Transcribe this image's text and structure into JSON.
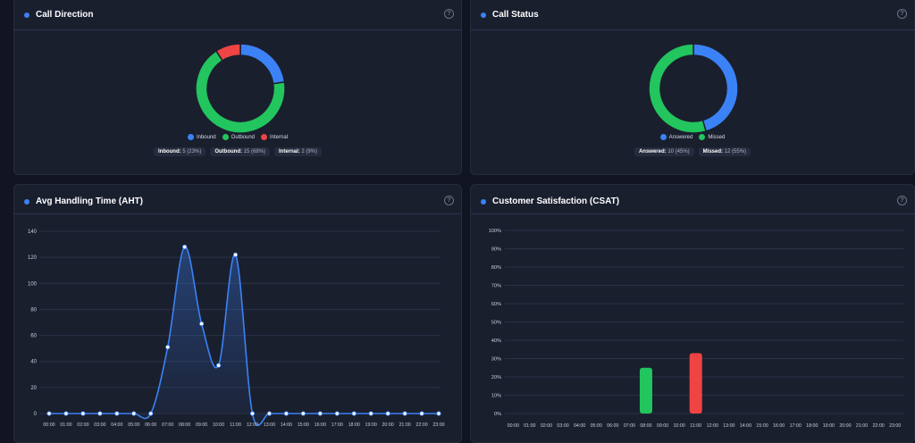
{
  "call_direction": {
    "title": "Call Direction",
    "help": "?",
    "legend": [
      {
        "label": "Inbound",
        "color": "#3b82f6"
      },
      {
        "label": "Outbound",
        "color": "#22c55e"
      },
      {
        "label": "Internal",
        "color": "#ef4444"
      }
    ],
    "chips": [
      {
        "label": "Inbound:",
        "value": "5 (23%)"
      },
      {
        "label": "Outbound:",
        "value": "15 (68%)"
      },
      {
        "label": "Internal:",
        "value": "2 (9%)"
      }
    ]
  },
  "call_status": {
    "title": "Call Status",
    "help": "?",
    "legend": [
      {
        "label": "Answered",
        "color": "#3b82f6"
      },
      {
        "label": "Missed",
        "color": "#22c55e"
      }
    ],
    "chips": [
      {
        "label": "Answered:",
        "value": "10 (45%)"
      },
      {
        "label": "Missed:",
        "value": "12 (55%)"
      }
    ]
  },
  "aht": {
    "title": "Avg Handling Time (AHT)",
    "help": "?"
  },
  "csat": {
    "title": "Customer Satisfaction (CSAT)",
    "help": "?"
  },
  "chart_data": [
    {
      "type": "pie",
      "donut": true,
      "categories": [
        "Inbound",
        "Outbound",
        "Internal"
      ],
      "values": [
        5,
        15,
        2
      ],
      "colors": [
        "#3b82f6",
        "#22c55e",
        "#ef4444"
      ]
    },
    {
      "type": "pie",
      "donut": true,
      "categories": [
        "Answered",
        "Missed"
      ],
      "values": [
        10,
        12
      ],
      "colors": [
        "#3b82f6",
        "#22c55e"
      ]
    },
    {
      "type": "line",
      "smooth": true,
      "area": true,
      "color": "#3b82f6",
      "x": [
        "00:00",
        "01:00",
        "02:00",
        "03:00",
        "04:00",
        "05:00",
        "06:00",
        "07:00",
        "08:00",
        "09:00",
        "10:00",
        "11:00",
        "12:00",
        "13:00",
        "14:00",
        "15:00",
        "16:00",
        "17:00",
        "18:00",
        "19:00",
        "20:00",
        "21:00",
        "22:00",
        "23:00"
      ],
      "values": [
        0,
        0,
        0,
        0,
        0,
        0,
        0,
        51,
        128,
        69,
        37,
        122,
        0,
        0,
        0,
        0,
        0,
        0,
        0,
        0,
        0,
        0,
        0,
        0
      ],
      "ylim": [
        0,
        140
      ],
      "yticks": [
        0,
        20,
        40,
        60,
        80,
        100,
        120,
        140
      ],
      "grid": true
    },
    {
      "type": "bar",
      "x": [
        "00:00",
        "01:00",
        "02:00",
        "03:00",
        "04:00",
        "05:00",
        "06:00",
        "07:00",
        "08:00",
        "09:00",
        "10:00",
        "11:00",
        "12:00",
        "13:00",
        "14:00",
        "15:00",
        "16:00",
        "17:00",
        "18:00",
        "19:00",
        "20:00",
        "21:00",
        "22:00",
        "23:00"
      ],
      "values": [
        0,
        0,
        0,
        0,
        0,
        0,
        0,
        0,
        25,
        0,
        0,
        33,
        0,
        0,
        0,
        0,
        0,
        0,
        0,
        0,
        0,
        0,
        0,
        0
      ],
      "bar_colors": {
        "8": "#22c55e",
        "11": "#ef4444"
      },
      "ylim": [
        0,
        100
      ],
      "yticks": [
        "0%",
        "10%",
        "20%",
        "30%",
        "40%",
        "50%",
        "60%",
        "70%",
        "80%",
        "90%",
        "100%"
      ],
      "grid": true
    }
  ]
}
